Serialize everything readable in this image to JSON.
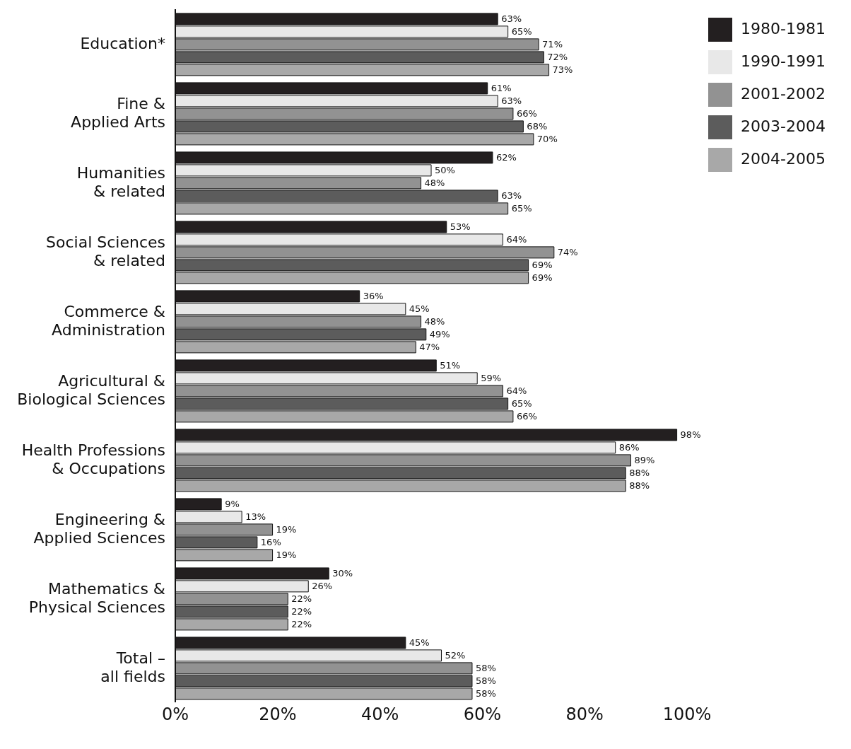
{
  "chart_data": {
    "type": "bar",
    "orientation": "horizontal",
    "categories": [
      "Education*",
      "Fine &\nApplied Arts",
      "Humanities\n& related",
      "Social Sciences\n& related",
      "Commerce &\nAdministration",
      "Agricultural &\nBiological Sciences",
      "Health Professions\n& Occupations",
      "Engineering &\nApplied Sciences",
      "Mathematics &\nPhysical Sciences",
      "Total –\nall fields"
    ],
    "series": [
      {
        "name": "1980-1981",
        "color": "#231f20",
        "values": [
          63,
          61,
          62,
          53,
          36,
          51,
          98,
          9,
          30,
          45
        ],
        "value_labels": [
          "63%",
          "61%",
          "62%",
          "53%",
          "36%",
          "51%",
          "98%",
          "9%",
          "30%",
          "45%"
        ]
      },
      {
        "name": "1990-1991",
        "color": "#e8e8e8",
        "values": [
          65,
          63,
          50,
          64,
          45,
          59,
          86,
          13,
          26,
          52
        ],
        "value_labels": [
          "65%",
          "63%",
          "50%",
          "64%",
          "45%",
          "59%",
          "86%",
          "13%",
          "26%",
          "52%"
        ]
      },
      {
        "name": "2001-2002",
        "color": "#929292",
        "values": [
          71,
          66,
          48,
          74,
          48,
          64,
          89,
          19,
          22,
          58
        ],
        "value_labels": [
          "71%",
          "66%",
          "48%",
          "74%",
          "48%",
          "64%",
          "89%",
          "19%",
          "22%",
          "58%"
        ]
      },
      {
        "name": "2003-2004",
        "color": "#5c5c5c",
        "values": [
          72,
          68,
          63,
          69,
          49,
          65,
          88,
          16,
          22,
          58
        ],
        "value_labels": [
          "72%",
          "68%",
          "63%",
          "69%",
          "49%",
          "65%",
          "88%",
          "16%",
          "22%",
          "58%"
        ]
      },
      {
        "name": "2004-2005",
        "color": "#a8a8a8",
        "values": [
          73,
          70,
          65,
          69,
          47,
          66,
          88,
          19,
          22,
          58
        ],
        "value_labels": [
          "73%",
          "70%",
          "65%",
          "69%",
          "47%",
          "66%",
          "88%",
          "19%",
          "22%",
          "58%"
        ]
      }
    ],
    "xlim": [
      0,
      100
    ],
    "xticks": [
      {
        "value": 0,
        "label": "0%"
      },
      {
        "value": 20,
        "label": "20%"
      },
      {
        "value": 40,
        "label": "40%"
      },
      {
        "value": 60,
        "label": "60%"
      },
      {
        "value": 80,
        "label": "80%"
      },
      {
        "value": 100,
        "label": "100%"
      }
    ],
    "legend": "top right",
    "grid": false
  }
}
